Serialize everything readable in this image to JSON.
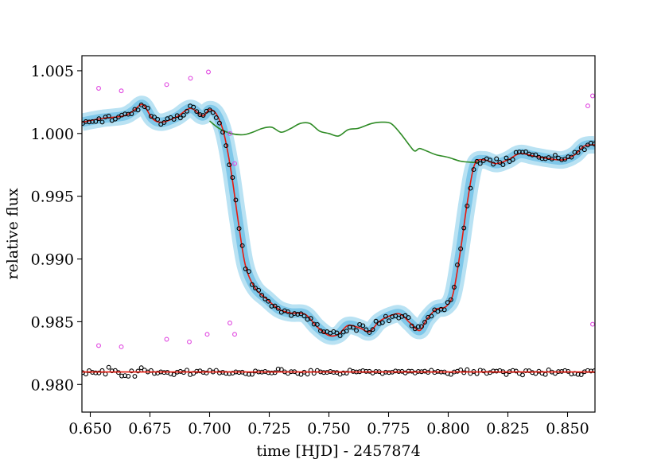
{
  "chart_data": {
    "type": "scatter",
    "title": "",
    "xlabel": "time [HJD] - 2457874",
    "ylabel": "relative flux",
    "xlim": [
      0.6465,
      0.8615
    ],
    "ylim": [
      0.9778,
      1.0062
    ],
    "grid": false,
    "x_ticks": [
      0.65,
      0.675,
      0.7,
      0.725,
      0.75,
      0.775,
      0.8,
      0.825,
      0.85
    ],
    "x_tick_labels": [
      "0.650",
      "0.675",
      "0.700",
      "0.725",
      "0.750",
      "0.775",
      "0.800",
      "0.825",
      "0.850"
    ],
    "y_ticks": [
      0.98,
      0.985,
      0.99,
      0.995,
      1.0,
      1.005
    ],
    "y_tick_labels": [
      "0.980",
      "0.985",
      "0.990",
      "0.995",
      "1.000",
      "1.005"
    ],
    "colors": {
      "model": "#e8190e",
      "band_outer": "#b9e2f3",
      "band_inner": "#7ec7e9",
      "trend": "#2e8b25",
      "outliers": "#e046e0",
      "points": "#000000",
      "residual_line": "#e8190e"
    },
    "series": [
      {
        "kind": "band",
        "role": "model-uncertainty",
        "x": [
          0.6465,
          0.655,
          0.664,
          0.668,
          0.672,
          0.676,
          0.68,
          0.686,
          0.692,
          0.697,
          0.7,
          0.703,
          0.706,
          0.709,
          0.712,
          0.715,
          0.719,
          0.724,
          0.729,
          0.734,
          0.74,
          0.745,
          0.75,
          0.754,
          0.758,
          0.763,
          0.767,
          0.771,
          0.776,
          0.78,
          0.784,
          0.788,
          0.791,
          0.795,
          0.799,
          0.802,
          0.805,
          0.808,
          0.811,
          0.815,
          0.82,
          0.825,
          0.83,
          0.836,
          0.842,
          0.848,
          0.853,
          0.857,
          0.8615
        ],
        "y": [
          1.0009,
          1.0012,
          1.0014,
          1.0018,
          1.0023,
          1.0012,
          1.0009,
          1.0013,
          1.002,
          1.0014,
          1.0019,
          1.0015,
          1.0,
          0.997,
          0.993,
          0.9895,
          0.9877,
          0.9868,
          0.986,
          0.9857,
          0.9856,
          0.9846,
          0.9839,
          0.984,
          0.9847,
          0.9845,
          0.9842,
          0.985,
          0.9855,
          0.9856,
          0.9849,
          0.9843,
          0.9852,
          0.986,
          0.9862,
          0.9872,
          0.9905,
          0.9945,
          0.9975,
          0.9979,
          0.9976,
          0.9979,
          0.9984,
          0.9982,
          0.998,
          0.9979,
          0.9983,
          0.999,
          0.9991
        ]
      },
      {
        "kind": "line",
        "role": "transit-model",
        "x": [
          0.6465,
          0.655,
          0.664,
          0.668,
          0.672,
          0.676,
          0.68,
          0.686,
          0.692,
          0.697,
          0.7,
          0.703,
          0.706,
          0.709,
          0.712,
          0.715,
          0.719,
          0.724,
          0.729,
          0.734,
          0.74,
          0.745,
          0.75,
          0.754,
          0.758,
          0.763,
          0.767,
          0.771,
          0.776,
          0.78,
          0.784,
          0.788,
          0.791,
          0.795,
          0.799,
          0.802,
          0.805,
          0.808,
          0.811,
          0.815,
          0.82,
          0.825,
          0.83,
          0.836,
          0.842,
          0.848,
          0.853,
          0.857,
          0.8615
        ],
        "y": [
          1.0009,
          1.0012,
          1.0014,
          1.0018,
          1.0023,
          1.0012,
          1.0009,
          1.0013,
          1.002,
          1.0014,
          1.0019,
          1.0015,
          1.0,
          0.997,
          0.993,
          0.9895,
          0.9877,
          0.9868,
          0.986,
          0.9857,
          0.9856,
          0.9846,
          0.9839,
          0.984,
          0.9847,
          0.9845,
          0.9842,
          0.985,
          0.9855,
          0.9856,
          0.9849,
          0.9843,
          0.9852,
          0.986,
          0.9862,
          0.9872,
          0.9905,
          0.9945,
          0.9975,
          0.9979,
          0.9976,
          0.9979,
          0.9984,
          0.9982,
          0.998,
          0.9979,
          0.9983,
          0.999,
          0.9991
        ]
      },
      {
        "kind": "line",
        "role": "systematics-trend",
        "x": [
          0.7,
          0.704,
          0.709,
          0.714,
          0.718,
          0.722,
          0.726,
          0.73,
          0.734,
          0.738,
          0.742,
          0.746,
          0.75,
          0.754,
          0.758,
          0.762,
          0.765,
          0.768,
          0.772,
          0.776,
          0.78,
          0.784,
          0.786,
          0.788,
          0.791,
          0.795,
          0.8,
          0.805,
          0.81,
          0.813
        ],
        "y": [
          1.001,
          1.0004,
          1.0,
          0.9999,
          1.0001,
          1.0004,
          1.0005,
          1.0001,
          1.0004,
          1.0008,
          1.0008,
          1.0002,
          1.0,
          0.9998,
          1.0003,
          1.0004,
          1.0006,
          1.0008,
          1.0009,
          1.0008,
          1.0,
          0.999,
          0.9986,
          0.9988,
          0.9986,
          0.9983,
          0.9981,
          0.9978,
          0.9977,
          0.9977
        ]
      },
      {
        "kind": "scatter",
        "role": "outliers",
        "x": [
          0.6535,
          0.663,
          0.682,
          0.692,
          0.6995,
          0.7085,
          0.7105,
          0.8585,
          0.8605,
          0.6535,
          0.663,
          0.682,
          0.6915,
          0.699,
          0.7085,
          0.7105,
          0.8605
        ],
        "y": [
          1.0036,
          1.0034,
          1.0039,
          1.0044,
          1.0049,
          1.0,
          0.9976,
          1.0022,
          1.003,
          0.9831,
          0.983,
          0.9836,
          0.9834,
          0.984,
          0.9849,
          0.984,
          0.9848
        ]
      },
      {
        "kind": "line",
        "role": "residual-zero",
        "x": [
          0.6465,
          0.8615
        ],
        "y": [
          0.981,
          0.981
        ]
      }
    ]
  }
}
